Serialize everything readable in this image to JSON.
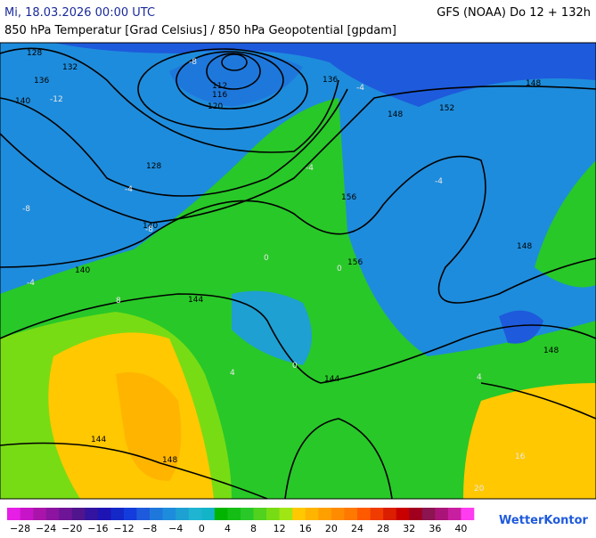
{
  "header": {
    "left": "Mi, 18.03.2026 00:00 UTC",
    "right": "GFS (NOAA) Do 12 + 132h",
    "subtitle": "850 hPa Temperatur [Grad Celsius] / 850 hPa Geopotential [gpdam]"
  },
  "map": {
    "contour_labels": [
      "128",
      "132",
      "136",
      "140",
      "112",
      "116",
      "120",
      "128",
      "136",
      "148",
      "152",
      "148",
      "156",
      "156",
      "140",
      "140",
      "144",
      "144",
      "148",
      "148",
      "144",
      "148"
    ],
    "temperature_labels": [
      "-12",
      "-8",
      "-8",
      "-4",
      "-4",
      "0",
      "0",
      "4",
      "-4",
      "-4",
      "0",
      "4",
      "8",
      "-8",
      "-4",
      "16",
      "20"
    ]
  },
  "colorbar": {
    "labels": [
      "−28",
      "−24",
      "−20",
      "−16",
      "−12",
      "−8",
      "−4",
      "0",
      "4",
      "8",
      "12",
      "16",
      "20",
      "24",
      "28",
      "32",
      "36",
      "40"
    ],
    "colors": [
      "#e61ee6",
      "#c814c8",
      "#aa14aa",
      "#8c14a0",
      "#6e1496",
      "#50148c",
      "#3214a0",
      "#1e14b4",
      "#1428c8",
      "#143cdc",
      "#1e5adc",
      "#1e78dc",
      "#1e8cdc",
      "#1ea0d2",
      "#1eb4d2",
      "#14b4c8",
      "#00b400",
      "#14be14",
      "#28c828",
      "#50d21e",
      "#78dc14",
      "#a0e614",
      "#ffc800",
      "#ffb400",
      "#ffa000",
      "#ff8c00",
      "#ff7800",
      "#ff5a00",
      "#f03c00",
      "#dc1e00",
      "#c80000",
      "#a0001e",
      "#8c1450",
      "#aa1478",
      "#c81ea0",
      "#ff3cf0"
    ]
  },
  "logo": "WetterKontor"
}
